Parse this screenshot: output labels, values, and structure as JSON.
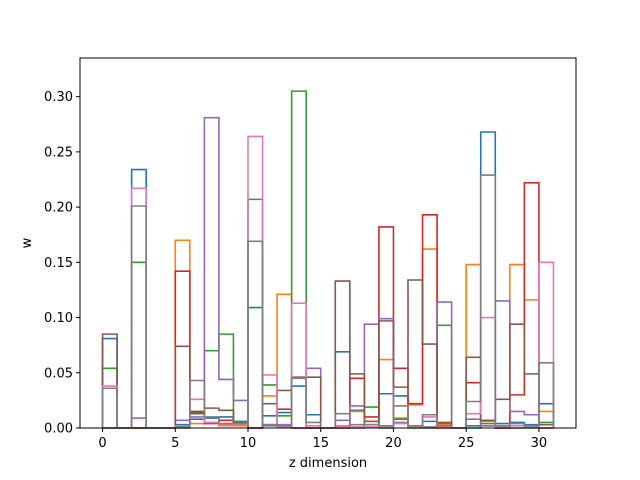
{
  "chart_data": {
    "type": "bar",
    "style": "step-histogram",
    "title": "",
    "xlabel": "z dimension",
    "ylabel": "w",
    "xlim": [
      -1.55,
      32.55
    ],
    "ylim": [
      0,
      0.335
    ],
    "xticks": [
      0,
      5,
      10,
      15,
      20,
      25,
      30
    ],
    "yticks": [
      0.0,
      0.05,
      0.1,
      0.15,
      0.2,
      0.25,
      0.3
    ],
    "ytick_labels": [
      "0.00",
      "0.05",
      "0.10",
      "0.15",
      "0.20",
      "0.25",
      "0.30"
    ],
    "grid": false,
    "legend": "none",
    "bin_width": 1,
    "x": [
      0,
      1,
      2,
      3,
      4,
      5,
      6,
      7,
      8,
      9,
      10,
      11,
      12,
      13,
      14,
      15,
      16,
      17,
      18,
      19,
      20,
      21,
      22,
      23,
      24,
      25,
      26,
      27,
      28,
      29,
      30
    ],
    "series": [
      {
        "color": "#1f77b4",
        "values": [
          0.081,
          0,
          0.234,
          0,
          0,
          0.003,
          0.008,
          0.009,
          0.01,
          0.006,
          0.109,
          0.011,
          0.014,
          0.038,
          0.012,
          0,
          0.069,
          0.016,
          0.003,
          0.031,
          0.029,
          0.002,
          0.006,
          0.004,
          0,
          0.002,
          0.268,
          0.004,
          0.005,
          0.003,
          0.022
        ]
      },
      {
        "color": "#ff7f0e",
        "values": [
          0,
          0,
          0,
          0,
          0,
          0.17,
          0.004,
          0.005,
          0.003,
          0.002,
          0,
          0.029,
          0.121,
          0,
          0,
          0,
          0.002,
          0.015,
          0.006,
          0.062,
          0.009,
          0.021,
          0.162,
          0.003,
          0,
          0.148,
          0.006,
          0,
          0.148,
          0.116,
          0.015
        ]
      },
      {
        "color": "#2ca02c",
        "values": [
          0.054,
          0,
          0.15,
          0,
          0,
          0,
          0.014,
          0.07,
          0.085,
          0.005,
          0.207,
          0.039,
          0.011,
          0.305,
          0,
          0,
          0,
          0,
          0.019,
          0,
          0.008,
          0,
          0,
          0.093,
          0,
          0,
          0.004,
          0,
          0,
          0,
          0.005
        ]
      },
      {
        "color": "#d62728",
        "values": [
          0,
          0,
          0,
          0,
          0,
          0.142,
          0.015,
          0.004,
          0.007,
          0.004,
          0,
          0.003,
          0.017,
          0,
          0,
          0,
          0,
          0.045,
          0.01,
          0.182,
          0.054,
          0.022,
          0.193,
          0,
          0,
          0.041,
          0.002,
          0,
          0.03,
          0.222,
          0
        ]
      },
      {
        "color": "#9467bd",
        "values": [
          0,
          0,
          0.009,
          0,
          0,
          0.007,
          0.01,
          0.281,
          0.044,
          0.025,
          0,
          0.002,
          0.003,
          0,
          0.054,
          0,
          0.007,
          0.02,
          0.094,
          0.099,
          0.005,
          0.002,
          0.001,
          0.114,
          0,
          0.008,
          0.002,
          0.115,
          0.015,
          0.012,
          0
        ]
      },
      {
        "color": "#8c564b",
        "values": [
          0.085,
          0,
          0,
          0,
          0,
          0.074,
          0.013,
          0.018,
          0.016,
          0.003,
          0,
          0.022,
          0.034,
          0.046,
          0.046,
          0,
          0.133,
          0.049,
          0.006,
          0.097,
          0.037,
          0.134,
          0.076,
          0.005,
          0,
          0.064,
          0.007,
          0.026,
          0.094,
          0.049,
          0.003
        ]
      },
      {
        "color": "#e377c2",
        "values": [
          0.038,
          0,
          0.217,
          0,
          0,
          0.002,
          0.026,
          0.005,
          0.002,
          0.003,
          0.264,
          0.048,
          0.001,
          0.113,
          0.002,
          0,
          0.001,
          0.001,
          0.001,
          0.001,
          0.004,
          0.001,
          0.01,
          0.001,
          0,
          0.013,
          0.1,
          0.001,
          0.002,
          0.001,
          0.15
        ]
      },
      {
        "color": "#7f7f7f",
        "values": [
          0.036,
          0,
          0.201,
          0,
          0,
          0.001,
          0.043,
          0.01,
          0.004,
          0.004,
          0.169,
          0.003,
          0.002,
          0.045,
          0.005,
          0,
          0.013,
          0.003,
          0.003,
          0.002,
          0.02,
          0.002,
          0.012,
          0.002,
          0,
          0.024,
          0.229,
          0.002,
          0.004,
          0.002,
          0.059
        ]
      }
    ]
  }
}
